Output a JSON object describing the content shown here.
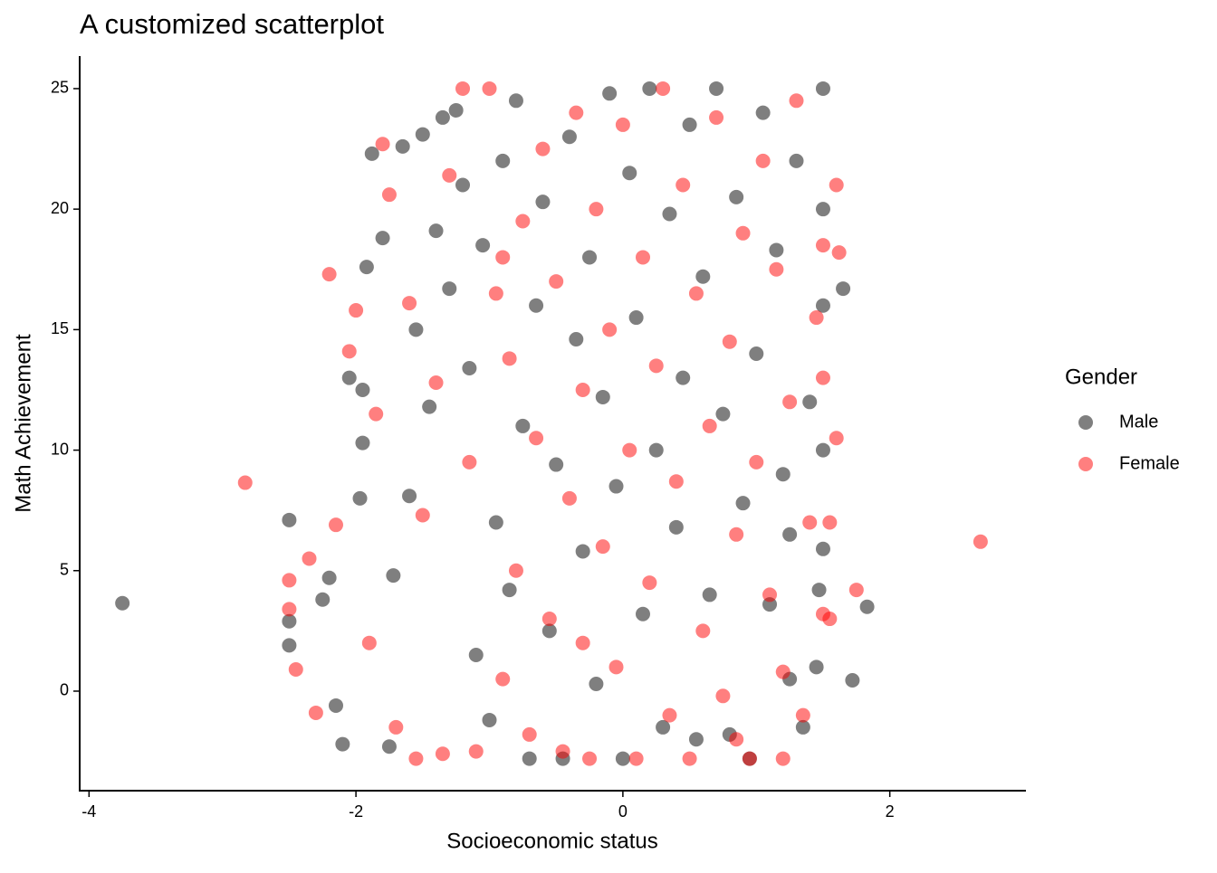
{
  "chart_data": {
    "type": "scatter",
    "title": "A customized scatterplot",
    "x_label": "Socioeconomic status",
    "y_label": "Math Achievement",
    "legend_title": "Gender",
    "legend_position": "right",
    "xlim": [
      -4.07,
      3.02
    ],
    "ylim": [
      -4.13,
      26.35
    ],
    "xticks": [
      -4,
      -2,
      0,
      2
    ],
    "yticks": [
      0,
      5,
      10,
      15,
      20,
      25
    ],
    "series": [
      {
        "name": "Male",
        "color": "#000000",
        "x": [
          -3.75,
          -2.5,
          -2.5,
          -2.5,
          -2.25,
          -2.2,
          -2.15,
          -2.1,
          -2.05,
          -1.95,
          -1.95,
          -1.97,
          -1.92,
          -1.88,
          -1.8,
          -1.75,
          -1.72,
          -1.65,
          -1.6,
          -1.55,
          -1.5,
          -1.45,
          -1.4,
          -1.35,
          -1.3,
          -1.25,
          -1.2,
          -1.15,
          -1.1,
          -1.05,
          -1.0,
          -0.95,
          -0.9,
          -0.85,
          -0.8,
          -0.75,
          -0.7,
          -0.65,
          -0.6,
          -0.55,
          -0.5,
          -0.45,
          -0.4,
          -0.35,
          -0.3,
          -0.25,
          -0.2,
          -0.15,
          -0.1,
          -0.05,
          0.0,
          0.05,
          0.1,
          0.15,
          0.2,
          0.25,
          0.3,
          0.35,
          0.4,
          0.45,
          0.5,
          0.55,
          0.6,
          0.65,
          0.7,
          0.75,
          0.8,
          0.85,
          0.9,
          0.95,
          1.0,
          1.05,
          1.1,
          1.15,
          1.2,
          1.25,
          1.3,
          1.35,
          1.4,
          1.45,
          1.5,
          1.5,
          1.5,
          1.5,
          1.5,
          1.47,
          1.65,
          1.72,
          1.83,
          1.25
        ],
        "values": [
          3.65,
          7.1,
          2.9,
          1.9,
          3.8,
          4.7,
          -0.6,
          -2.2,
          13.0,
          12.5,
          10.3,
          8.0,
          17.6,
          22.3,
          18.8,
          -2.3,
          4.8,
          22.6,
          8.1,
          15.0,
          23.1,
          11.8,
          19.1,
          23.8,
          16.7,
          24.1,
          21.0,
          13.4,
          1.5,
          18.5,
          -1.2,
          7.0,
          22.0,
          4.2,
          24.5,
          11.0,
          -2.8,
          16.0,
          20.3,
          2.5,
          9.4,
          -2.8,
          23.0,
          14.6,
          5.8,
          18.0,
          0.3,
          12.2,
          24.8,
          8.5,
          -2.8,
          21.5,
          15.5,
          3.2,
          25.0,
          10.0,
          -1.5,
          19.8,
          6.8,
          13.0,
          23.5,
          -2.0,
          17.2,
          4.0,
          25.0,
          11.5,
          -1.8,
          20.5,
          7.8,
          -2.8,
          14.0,
          24.0,
          3.6,
          18.3,
          9.0,
          0.5,
          22.0,
          -1.5,
          12.0,
          1.0,
          25.0,
          20.0,
          16.0,
          10.0,
          5.9,
          4.2,
          16.7,
          0.45,
          3.5,
          6.5
        ]
      },
      {
        "name": "Female",
        "color": "#ff0000",
        "x": [
          -2.83,
          2.68,
          1.75,
          1.6,
          1.62,
          -2.2,
          -2.5,
          -2.5,
          -2.45,
          -2.35,
          -2.05,
          1.5,
          -2.3,
          -2.15,
          -2.0,
          -1.9,
          -1.85,
          -1.8,
          -1.75,
          -1.7,
          -1.6,
          -1.55,
          -1.5,
          -1.4,
          -1.35,
          -1.3,
          -1.2,
          -1.15,
          -1.1,
          -1.0,
          -0.95,
          -0.9,
          -0.85,
          -0.8,
          -0.75,
          -0.7,
          -0.65,
          -0.6,
          -0.55,
          -0.5,
          -0.45,
          -0.4,
          -0.35,
          -0.3,
          -0.25,
          -0.2,
          -0.15,
          -0.1,
          -0.05,
          0.0,
          0.05,
          0.1,
          0.15,
          0.2,
          0.25,
          0.3,
          0.35,
          0.4,
          0.45,
          0.5,
          0.55,
          0.6,
          0.65,
          0.7,
          0.75,
          0.8,
          0.85,
          0.9,
          0.95,
          1.0,
          1.05,
          1.1,
          1.15,
          1.2,
          1.25,
          1.3,
          1.35,
          1.4,
          1.45,
          1.5,
          1.5,
          1.55,
          1.6,
          1.55,
          1.2,
          0.85,
          -0.3,
          -0.9
        ],
        "values": [
          8.65,
          6.2,
          4.2,
          21.0,
          18.2,
          17.3,
          4.6,
          3.4,
          0.9,
          5.5,
          14.1,
          3.2,
          -0.9,
          6.9,
          15.8,
          2.0,
          11.5,
          22.7,
          20.6,
          -1.5,
          16.1,
          -2.8,
          7.3,
          12.8,
          -2.6,
          21.4,
          25.0,
          9.5,
          -2.5,
          25.0,
          16.5,
          0.5,
          13.8,
          5.0,
          19.5,
          -1.8,
          10.5,
          22.5,
          3.0,
          17.0,
          -2.5,
          8.0,
          24.0,
          12.5,
          -2.8,
          20.0,
          6.0,
          15.0,
          1.0,
          23.5,
          10.0,
          -2.8,
          18.0,
          4.5,
          13.5,
          25.0,
          -1.0,
          8.7,
          21.0,
          -2.8,
          16.5,
          2.5,
          11.0,
          23.8,
          -0.2,
          14.5,
          6.5,
          19.0,
          -2.8,
          9.5,
          22.0,
          4.0,
          17.5,
          0.8,
          12.0,
          24.5,
          -1.0,
          7.0,
          15.5,
          18.5,
          13.0,
          7.0,
          10.5,
          3.0,
          -2.8,
          -2.0,
          2.0,
          18.0
        ]
      }
    ]
  }
}
